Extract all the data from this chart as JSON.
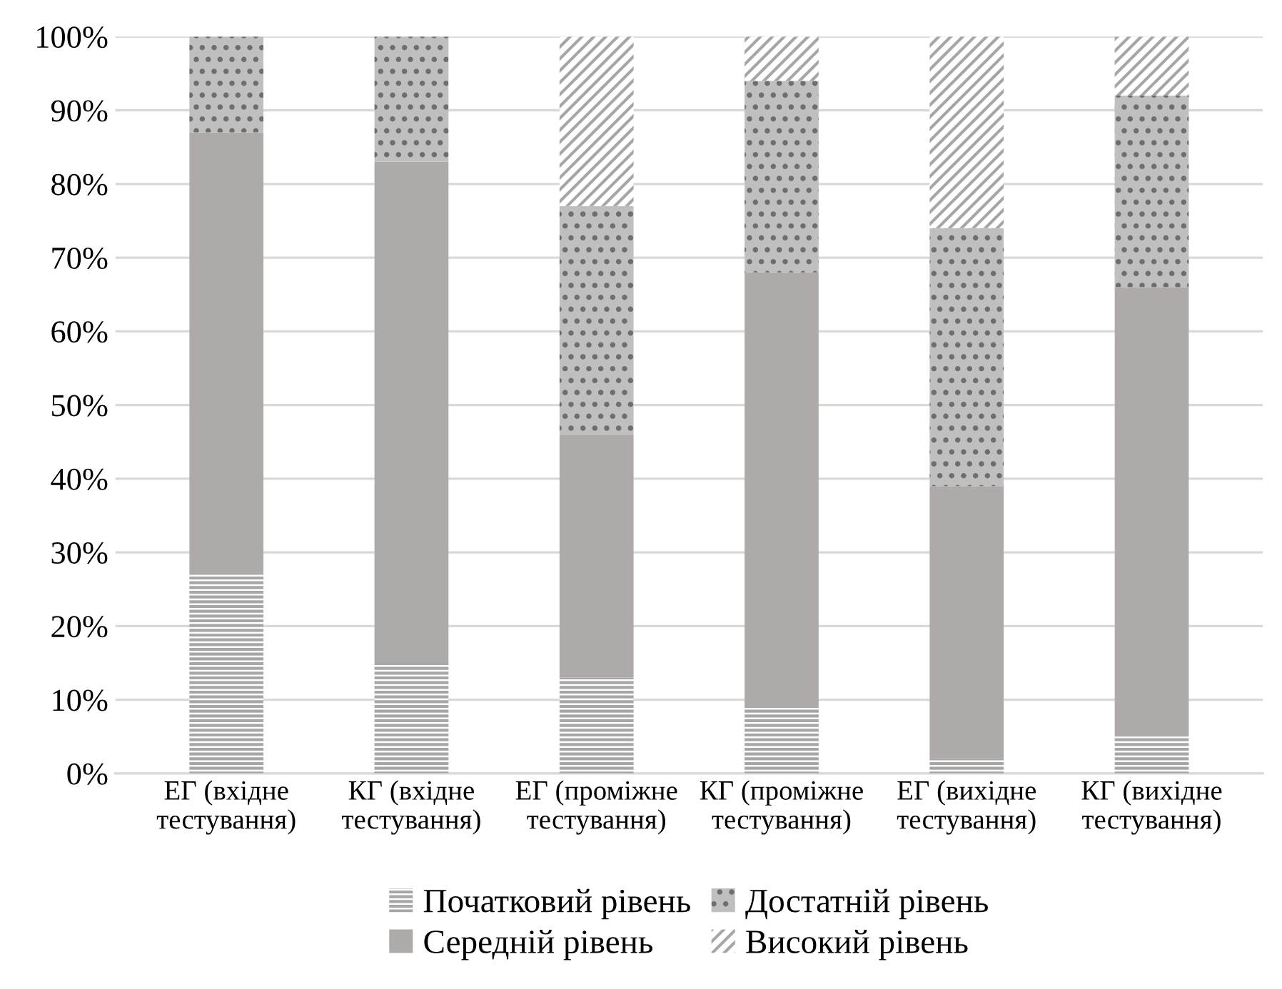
{
  "chart_data": {
    "type": "bar",
    "stacked": true,
    "categories": [
      "ЕГ (вхідне\nтестування)",
      "КГ (вхідне\nтестування)",
      "ЕГ (проміжне\nтестування)",
      "КГ (проміжне\nтестування)",
      "ЕГ (вихідне\nтестування)",
      "КГ (вихідне\nтестування)"
    ],
    "series": [
      {
        "name": "Початковий рівень",
        "color": "#a6a6a6",
        "values": [
          27,
          15,
          13,
          9,
          2,
          5
        ]
      },
      {
        "name": "Середній рівень",
        "color": "#aeaaaa",
        "values": [
          60,
          68,
          33,
          59,
          37,
          61
        ]
      },
      {
        "name": "Достатній рівень",
        "color": "#bfbfbf",
        "values": [
          13,
          17,
          31,
          26,
          35,
          26
        ]
      },
      {
        "name": "Високий рівень",
        "color": "#a6a6a6",
        "values": [
          0,
          0,
          23,
          6,
          26,
          8
        ]
      }
    ],
    "ylim": [
      0,
      100
    ],
    "yticks": [
      {
        "value": 0,
        "label": "0%"
      },
      {
        "value": 10,
        "label": "10%"
      },
      {
        "value": 20,
        "label": "20%"
      },
      {
        "value": 30,
        "label": "30%"
      },
      {
        "value": 40,
        "label": "40%"
      },
      {
        "value": 50,
        "label": "50%"
      },
      {
        "value": 60,
        "label": "60%"
      },
      {
        "value": 70,
        "label": "70%"
      },
      {
        "value": 80,
        "label": "80%"
      },
      {
        "value": 90,
        "label": "90%"
      },
      {
        "value": 100,
        "label": "100%"
      }
    ],
    "grid": "y",
    "legend": "bottom"
  }
}
